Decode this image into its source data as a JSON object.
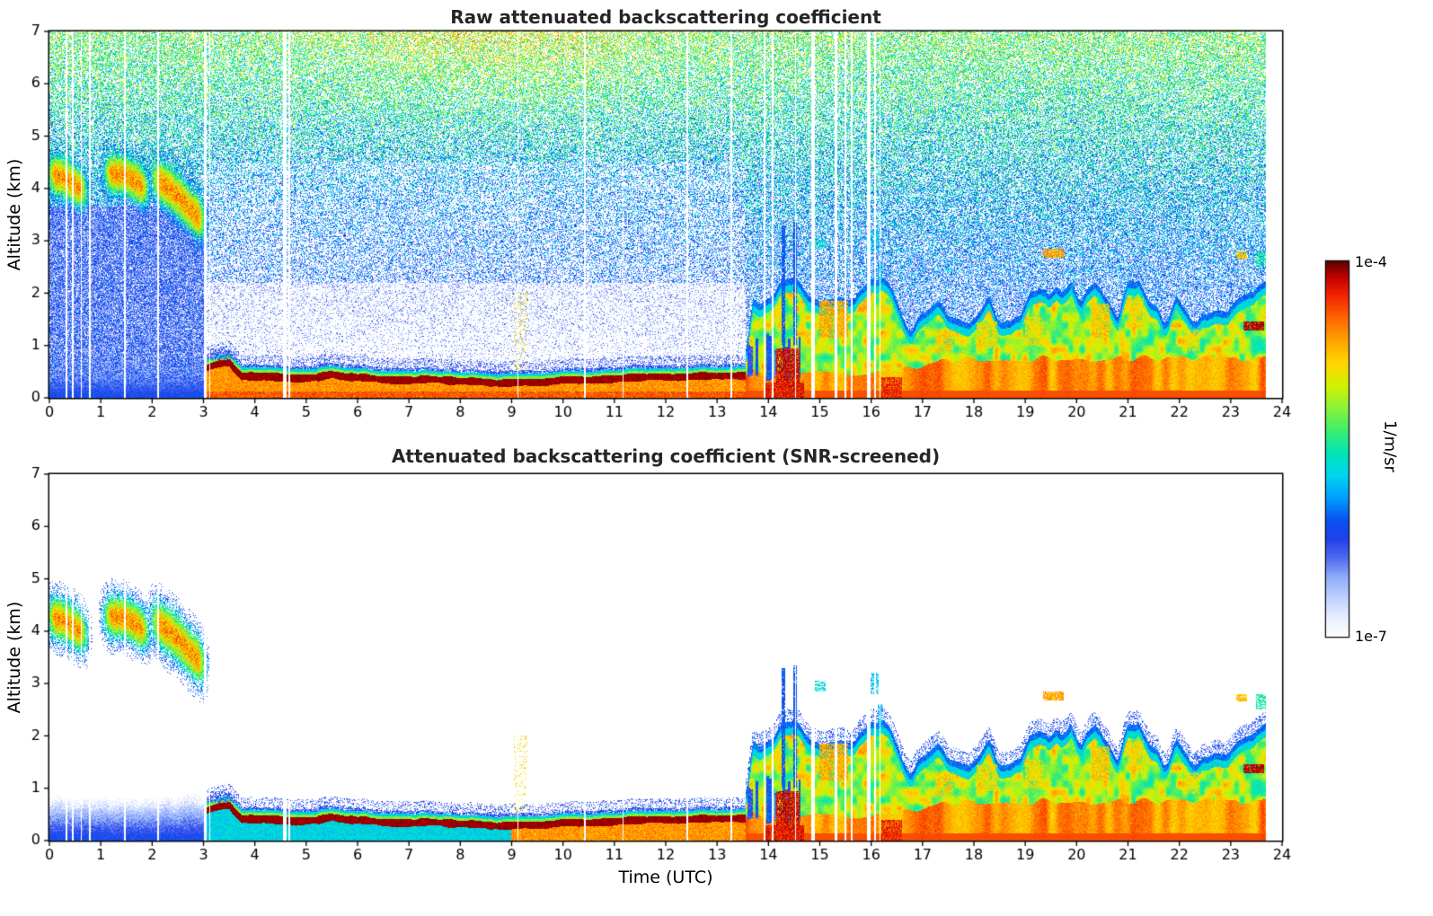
{
  "figure": {
    "background": "#ffffff",
    "description": "Two stacked lidar time-height heatmaps with shared logarithmic colorbar"
  },
  "chart_data": {
    "type": "heatmap",
    "panels": [
      {
        "title": "Raw attenuated backscattering coefficient",
        "screened": false
      },
      {
        "title": "Attenuated backscattering coefficient (SNR-screened)",
        "screened": true
      }
    ],
    "x": {
      "label": "Time (UTC)",
      "lim": [
        0,
        24
      ],
      "ticks": [
        0,
        1,
        2,
        3,
        4,
        5,
        6,
        7,
        8,
        9,
        10,
        11,
        12,
        13,
        14,
        15,
        16,
        17,
        18,
        19,
        20,
        21,
        22,
        23,
        24
      ]
    },
    "y": {
      "label": "Altitude (km)",
      "lim": [
        0,
        7
      ],
      "ticks": [
        0,
        1,
        2,
        3,
        4,
        5,
        6,
        7
      ]
    },
    "colorbar": {
      "max_label": "1e-4",
      "min_label": "1e-7",
      "unit": "1/m/sr",
      "scale": "log"
    },
    "features": {
      "data_end_hour": 23.68,
      "band_start_hour": 3.05,
      "band_end_hour": 13.55,
      "band_center_km": [
        [
          3.05,
          0.56
        ],
        [
          3.3,
          0.66
        ],
        [
          3.5,
          0.7
        ],
        [
          3.62,
          0.55
        ],
        [
          3.75,
          0.42
        ],
        [
          4.2,
          0.4
        ],
        [
          4.8,
          0.36
        ],
        [
          5.2,
          0.38
        ],
        [
          5.5,
          0.45
        ],
        [
          5.8,
          0.4
        ],
        [
          6.5,
          0.36
        ],
        [
          7.5,
          0.33
        ],
        [
          8.5,
          0.3
        ],
        [
          9.2,
          0.29
        ],
        [
          10,
          0.34
        ],
        [
          11,
          0.37
        ],
        [
          12,
          0.38
        ],
        [
          13,
          0.41
        ],
        [
          13.55,
          0.44
        ]
      ],
      "cloud_top_km": [
        [
          13.58,
          0.9
        ],
        [
          13.7,
          1.75
        ],
        [
          13.9,
          1.95
        ],
        [
          14.1,
          2.05
        ],
        [
          14.3,
          2.3
        ],
        [
          14.5,
          2.4
        ],
        [
          14.7,
          2.1
        ],
        [
          14.9,
          2.0
        ],
        [
          15.1,
          1.9
        ],
        [
          15.4,
          1.95
        ],
        [
          15.7,
          1.9
        ],
        [
          16.0,
          2.15
        ],
        [
          16.2,
          2.4
        ],
        [
          16.4,
          2.0
        ],
        [
          16.6,
          1.5
        ],
        [
          16.8,
          1.35
        ],
        [
          17.0,
          1.5
        ],
        [
          17.3,
          1.75
        ],
        [
          17.6,
          1.55
        ],
        [
          17.9,
          1.35
        ],
        [
          18.1,
          1.6
        ],
        [
          18.3,
          1.8
        ],
        [
          18.6,
          1.5
        ],
        [
          18.9,
          1.45
        ],
        [
          19.1,
          1.9
        ],
        [
          19.4,
          2.15
        ],
        [
          19.7,
          1.9
        ],
        [
          19.9,
          2.2
        ],
        [
          20.1,
          1.8
        ],
        [
          20.35,
          2.1
        ],
        [
          20.6,
          1.9
        ],
        [
          20.8,
          1.6
        ],
        [
          21.0,
          2.1
        ],
        [
          21.2,
          2.35
        ],
        [
          21.45,
          1.8
        ],
        [
          21.7,
          1.55
        ],
        [
          21.95,
          1.8
        ],
        [
          22.2,
          1.5
        ],
        [
          22.45,
          1.65
        ],
        [
          22.7,
          1.55
        ],
        [
          22.95,
          1.6
        ],
        [
          23.2,
          1.85
        ],
        [
          23.45,
          2.0
        ],
        [
          23.65,
          2.3
        ]
      ],
      "elevated_plumes": [
        {
          "path": [
            [
              -0.05,
              4.3
            ],
            [
              0.3,
              4.2
            ],
            [
              0.75,
              3.9
            ]
          ],
          "sigma_km": 0.3
        },
        {
          "path": [
            [
              1.05,
              4.3
            ],
            [
              1.5,
              4.25
            ],
            [
              1.95,
              3.95
            ]
          ],
          "sigma_km": 0.3
        },
        {
          "path": [
            [
              1.98,
              4.25
            ],
            [
              2.4,
              3.95
            ],
            [
              2.8,
              3.55
            ],
            [
              3.05,
              3.3
            ]
          ],
          "sigma_km": 0.33
        }
      ],
      "gaps_hours": [
        [
          0.33,
          0.04
        ],
        [
          0.46,
          0.03
        ],
        [
          0.62,
          0.03
        ],
        [
          0.79,
          0.03
        ],
        [
          1.47,
          0.04
        ],
        [
          2.12,
          0.04
        ],
        [
          3.03,
          0.05
        ],
        [
          3.12,
          0.03
        ],
        [
          4.58,
          0.08
        ],
        [
          4.67,
          0.05
        ],
        [
          9.12,
          0.03
        ],
        [
          10.42,
          0.03
        ],
        [
          11.17,
          0.03
        ],
        [
          12.42,
          0.03
        ],
        [
          13.28,
          0.04
        ],
        [
          13.93,
          0.04
        ],
        [
          14.08,
          0.03
        ],
        [
          14.53,
          0.03
        ],
        [
          14.87,
          0.06
        ],
        [
          15.32,
          0.05
        ],
        [
          15.5,
          0.04
        ],
        [
          15.62,
          0.03
        ],
        [
          15.95,
          0.06
        ],
        [
          16.07,
          0.04
        ],
        [
          16.17,
          0.03
        ]
      ],
      "patches": [
        {
          "t0": 13.9,
          "t1": 14.7,
          "a0": 0.0,
          "a1": 0.3,
          "v": 0.92,
          "d": 0.95
        },
        {
          "t0": 14.15,
          "t1": 14.6,
          "a0": 0.3,
          "a1": 0.95,
          "v": 0.94,
          "d": 0.85
        },
        {
          "t0": 16.2,
          "t1": 16.6,
          "a0": 0.0,
          "a1": 0.4,
          "v": 0.9,
          "d": 0.9
        },
        {
          "t0": 23.25,
          "t1": 23.65,
          "a0": 1.28,
          "a1": 1.46,
          "v": 0.96,
          "d": 0.9
        },
        {
          "t0": 15.0,
          "t1": 15.55,
          "a0": 1.15,
          "a1": 1.85,
          "v": 0.78,
          "d": 0.8
        },
        {
          "t0": 17.25,
          "t1": 17.6,
          "a0": 0.85,
          "a1": 1.3,
          "v": 0.74,
          "d": 0.7
        },
        {
          "t0": 18.05,
          "t1": 18.45,
          "a0": 0.95,
          "a1": 1.45,
          "v": 0.72,
          "d": 0.7
        },
        {
          "t0": 19.0,
          "t1": 19.35,
          "a0": 1.0,
          "a1": 1.55,
          "v": 0.72,
          "d": 0.7
        },
        {
          "t0": 20.3,
          "t1": 20.65,
          "a0": 1.15,
          "a1": 1.8,
          "v": 0.75,
          "d": 0.75
        },
        {
          "t0": 21.0,
          "t1": 21.3,
          "a0": 1.35,
          "a1": 1.9,
          "v": 0.72,
          "d": 0.7
        },
        {
          "t0": 22.1,
          "t1": 22.4,
          "a0": 0.9,
          "a1": 1.3,
          "v": 0.7,
          "d": 0.6
        },
        {
          "t0": 19.35,
          "t1": 19.75,
          "a0": 2.68,
          "a1": 2.84,
          "v": 0.78,
          "d": 0.85
        },
        {
          "t0": 23.1,
          "t1": 23.32,
          "a0": 2.66,
          "a1": 2.8,
          "v": 0.75,
          "d": 0.85
        },
        {
          "t0": 23.5,
          "t1": 23.78,
          "a0": 2.5,
          "a1": 2.8,
          "v": 0.5,
          "d": 0.7
        },
        {
          "t0": 14.85,
          "t1": 15.12,
          "a0": 2.85,
          "a1": 3.06,
          "v": 0.45,
          "d": 0.6
        },
        {
          "t0": 15.95,
          "t1": 16.14,
          "a0": 2.8,
          "a1": 3.2,
          "v": 0.42,
          "d": 0.6
        },
        {
          "t0": 14.25,
          "t1": 14.32,
          "a0": 1.0,
          "a1": 3.3,
          "v": 0.3,
          "d": 0.9
        },
        {
          "t0": 14.48,
          "t1": 14.55,
          "a0": 1.0,
          "a1": 3.35,
          "v": 0.3,
          "d": 0.9
        },
        {
          "t0": 16.12,
          "t1": 16.22,
          "a0": 2.2,
          "a1": 2.6,
          "v": 0.4,
          "d": 0.8
        },
        {
          "t0": 9.05,
          "t1": 9.3,
          "a0": 0.5,
          "a1": 2.0,
          "v": 0.72,
          "d": 0.12
        },
        {
          "t0": 3.1,
          "t1": 3.65,
          "a0": 0.72,
          "a1": 0.95,
          "v": 0.24,
          "d": 0.5
        }
      ],
      "colormap_stops": [
        [
          0.0,
          "#ffffff"
        ],
        [
          0.05,
          "#e9efff"
        ],
        [
          0.1,
          "#c3d3ff"
        ],
        [
          0.16,
          "#8fadfa"
        ],
        [
          0.21,
          "#4f6cf0"
        ],
        [
          0.26,
          "#2240ea"
        ],
        [
          0.31,
          "#0b50f0"
        ],
        [
          0.37,
          "#009cff"
        ],
        [
          0.43,
          "#00d4ef"
        ],
        [
          0.49,
          "#00e6b8"
        ],
        [
          0.55,
          "#3cee6e"
        ],
        [
          0.61,
          "#8af23a"
        ],
        [
          0.67,
          "#d2f200"
        ],
        [
          0.73,
          "#ffd600"
        ],
        [
          0.79,
          "#ffa300"
        ],
        [
          0.85,
          "#ff6400"
        ],
        [
          0.91,
          "#f12500"
        ],
        [
          0.96,
          "#c00000"
        ],
        [
          1.0,
          "#5f0000"
        ]
      ]
    }
  }
}
